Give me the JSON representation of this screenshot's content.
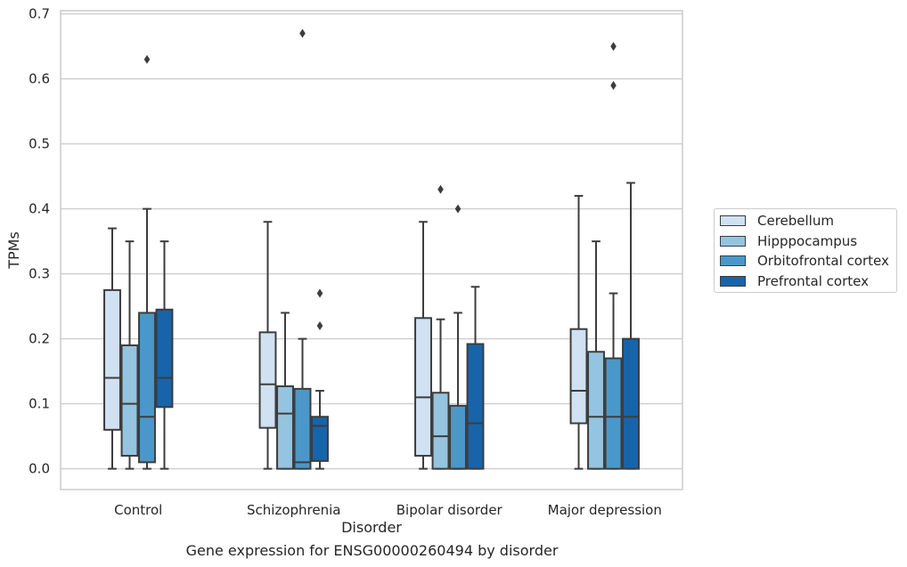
{
  "caption": "Gene expression for ENSG00000260494 by disorder",
  "chart_data": {
    "type": "box",
    "title": "",
    "xlabel": "Disorder",
    "ylabel": "TPMs",
    "ylim": [
      -0.032,
      0.705
    ],
    "yticks": [
      "0.0",
      "0.1",
      "0.2",
      "0.3",
      "0.4",
      "0.5",
      "0.6",
      "0.7"
    ],
    "categories": [
      "Control",
      "Schizophrenia",
      "Bipolar disorder",
      "Major depression"
    ],
    "grid": "horizontal",
    "legend_position": "right",
    "series": [
      {
        "name": "Cerebellum",
        "color": "#d0e1f2",
        "boxes": [
          {
            "whislo": 0.0,
            "q1": 0.06,
            "med": 0.14,
            "q3": 0.275,
            "whishi": 0.37,
            "fliers": []
          },
          {
            "whislo": 0.0,
            "q1": 0.063,
            "med": 0.13,
            "q3": 0.21,
            "whishi": 0.38,
            "fliers": []
          },
          {
            "whislo": 0.0,
            "q1": 0.02,
            "med": 0.11,
            "q3": 0.232,
            "whishi": 0.38,
            "fliers": []
          },
          {
            "whislo": 0.0,
            "q1": 0.07,
            "med": 0.12,
            "q3": 0.215,
            "whishi": 0.42,
            "fliers": []
          }
        ]
      },
      {
        "name": "Hipppocampus",
        "color": "#94c4df",
        "boxes": [
          {
            "whislo": 0.0,
            "q1": 0.02,
            "med": 0.1,
            "q3": 0.19,
            "whishi": 0.35,
            "fliers": []
          },
          {
            "whislo": 0.0,
            "q1": 0.0,
            "med": 0.085,
            "q3": 0.127,
            "whishi": 0.24,
            "fliers": []
          },
          {
            "whislo": 0.0,
            "q1": 0.0,
            "med": 0.05,
            "q3": 0.117,
            "whishi": 0.23,
            "fliers": [
              0.43
            ]
          },
          {
            "whislo": 0.0,
            "q1": 0.0,
            "med": 0.08,
            "q3": 0.18,
            "whishi": 0.35,
            "fliers": []
          }
        ]
      },
      {
        "name": "Orbitofrontal cortex",
        "color": "#4a98c9",
        "boxes": [
          {
            "whislo": 0.0,
            "q1": 0.01,
            "med": 0.08,
            "q3": 0.24,
            "whishi": 0.4,
            "fliers": [
              0.63
            ]
          },
          {
            "whislo": 0.0,
            "q1": 0.0,
            "med": 0.01,
            "q3": 0.123,
            "whishi": 0.2,
            "fliers": [
              0.67
            ]
          },
          {
            "whislo": 0.0,
            "q1": 0.0,
            "med": 0.0,
            "q3": 0.097,
            "whishi": 0.24,
            "fliers": [
              0.4
            ]
          },
          {
            "whislo": 0.0,
            "q1": 0.0,
            "med": 0.08,
            "q3": 0.17,
            "whishi": 0.27,
            "fliers": [
              0.59,
              0.65
            ]
          }
        ]
      },
      {
        "name": "Prefrontal cortex",
        "color": "#1764ab",
        "boxes": [
          {
            "whislo": 0.0,
            "q1": 0.095,
            "med": 0.14,
            "q3": 0.245,
            "whishi": 0.35,
            "fliers": []
          },
          {
            "whislo": 0.0,
            "q1": 0.012,
            "med": 0.066,
            "q3": 0.08,
            "whishi": 0.12,
            "fliers": [
              0.22,
              0.27
            ]
          },
          {
            "whislo": 0.0,
            "q1": 0.0,
            "med": 0.07,
            "q3": 0.192,
            "whishi": 0.28,
            "fliers": []
          },
          {
            "whislo": 0.0,
            "q1": 0.0,
            "med": 0.08,
            "q3": 0.2,
            "whishi": 0.44,
            "fliers": []
          }
        ]
      }
    ]
  }
}
